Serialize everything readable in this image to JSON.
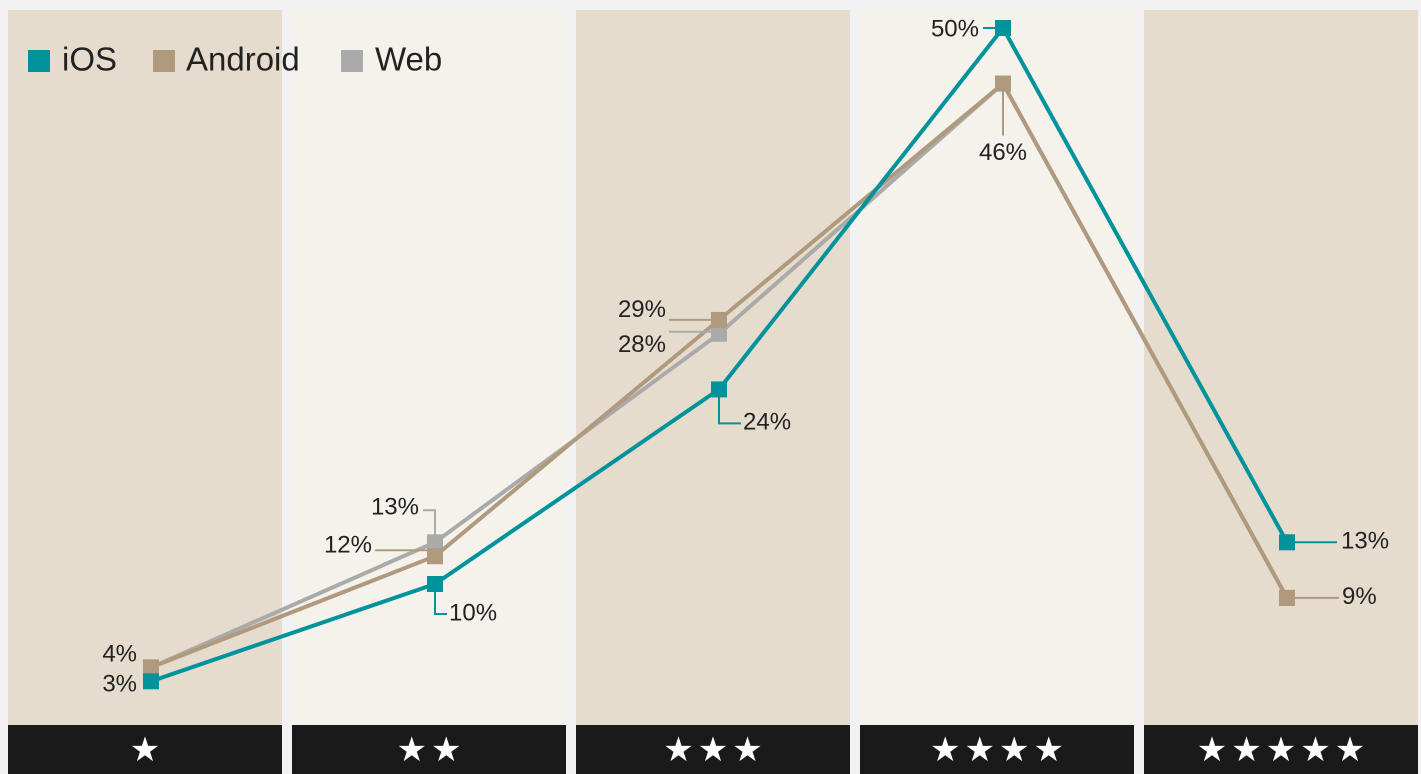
{
  "chart_data": {
    "type": "line",
    "categories": [
      "★",
      "★★",
      "★★★",
      "★★★★",
      "★★★★★"
    ],
    "ylim": [
      0,
      50
    ],
    "legend": "top-left",
    "series": [
      {
        "name": "iOS",
        "color": "#00939b",
        "values": [
          3,
          10,
          24,
          50,
          13
        ],
        "value_labels": [
          "3%",
          "10%",
          "24%",
          "50%",
          "13%"
        ]
      },
      {
        "name": "Android",
        "color": "#b09a7e",
        "values": [
          4,
          12,
          29,
          46,
          9
        ],
        "value_labels": [
          "4%",
          "12%",
          "29%",
          "46%",
          "9%"
        ]
      },
      {
        "name": "Web",
        "color": "#aaaaaa",
        "values": [
          4,
          13,
          28,
          46,
          9
        ],
        "value_labels": [
          null,
          "13%",
          "28%",
          null,
          null
        ]
      }
    ]
  }
}
